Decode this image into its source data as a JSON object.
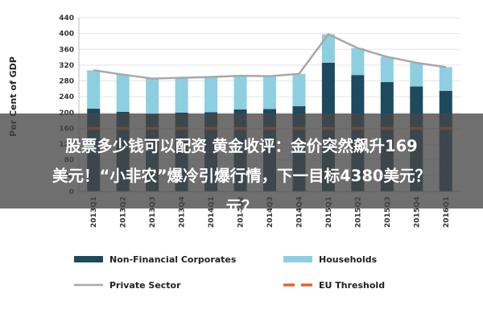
{
  "chart_data": {
    "type": "bar",
    "stacked": true,
    "ylabel": "Per Cent of GDP",
    "ylim": [
      0,
      440
    ],
    "yticks": [
      0,
      40,
      80,
      120,
      160,
      200,
      240,
      280,
      320,
      360,
      400,
      440
    ],
    "categories": [
      "2013Q1",
      "2013Q2",
      "2013Q3",
      "2013Q4",
      "2014Q1",
      "2014Q2",
      "2014Q3",
      "2014Q4",
      "2015Q1",
      "2015Q2",
      "2015Q3",
      "2015Q4",
      "2016Q1"
    ],
    "series": [
      {
        "name": "Non-Financial Corporates",
        "type": "bar",
        "color": "#1d4a5c",
        "values": [
          210,
          202,
          196,
          200,
          201,
          208,
          209,
          216,
          326,
          295,
          277,
          266,
          255
        ]
      },
      {
        "name": "Households",
        "type": "bar",
        "color": "#8dcfe0",
        "values": [
          97,
          94,
          90,
          88,
          89,
          85,
          83,
          82,
          72,
          68,
          64,
          60,
          60
        ]
      },
      {
        "name": "Private Sector",
        "type": "line",
        "color": "#a8a8a8",
        "values": [
          307,
          296,
          286,
          288,
          290,
          293,
          292,
          298,
          398,
          363,
          341,
          326,
          315
        ]
      },
      {
        "name": "EU Threshold",
        "type": "line",
        "color": "#e0662a",
        "dashed": true,
        "values": [
          160,
          160,
          160,
          160,
          160,
          160,
          160,
          160,
          160,
          160,
          160,
          160,
          160
        ]
      }
    ],
    "grid": true,
    "legend_position": "bottom"
  },
  "overlay": {
    "line1": "股票多少钱可以配资 黄金收评：金价突然飙升169",
    "line2": "美元！“小非农”爆冷引爆行情，下一目标4380美元？",
    "line3": "元？"
  }
}
